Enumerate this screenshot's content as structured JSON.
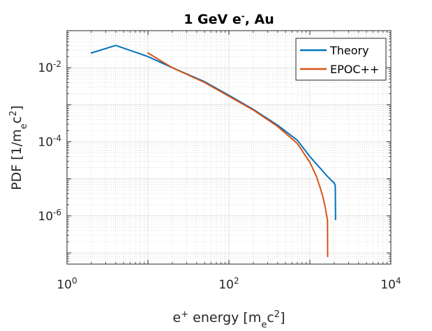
{
  "chart_data": {
    "type": "line",
    "title": {
      "main": "1 GeV e",
      "sup": "-",
      "tail": ", Au"
    },
    "xlabel": {
      "a": "e",
      "a_sup": "+",
      "b": " energy [m",
      "b_sub": "e",
      "c": "c",
      "c_sup": "2",
      "d": "]"
    },
    "ylabel": {
      "a": "PDF [1/m",
      "a_sub": "e",
      "b": "c",
      "b_sup": "2",
      "c": "]"
    },
    "xscale": "log",
    "yscale": "log",
    "xlim": [
      1,
      10000
    ],
    "ylim": [
      5e-08,
      0.1
    ],
    "xticks": [
      {
        "value": 1,
        "base": "10",
        "exp": "0"
      },
      {
        "value": 100,
        "base": "10",
        "exp": "2"
      },
      {
        "value": 10000,
        "base": "10",
        "exp": "4"
      }
    ],
    "yticks": [
      {
        "value": 1e-06,
        "base": "10",
        "exp": "-6"
      },
      {
        "value": 0.0001,
        "base": "10",
        "exp": "-4"
      },
      {
        "value": 0.01,
        "base": "10",
        "exp": "-2"
      }
    ],
    "grid": true,
    "legend_position": "top-right",
    "series": [
      {
        "name": "Theory",
        "color": "#0072BD",
        "x": [
          2,
          4,
          10,
          20,
          50,
          100,
          200,
          400,
          700,
          1000,
          1300,
          1600,
          1900,
          2000,
          2060,
          2070,
          2075
        ],
        "y": [
          0.025,
          0.04,
          0.02,
          0.01,
          0.0042,
          0.0018,
          0.00075,
          0.00028,
          0.00011,
          4e-05,
          2.1e-05,
          1.25e-05,
          8.5e-06,
          7.8e-06,
          6.6e-06,
          2e-06,
          8e-07
        ]
      },
      {
        "name": "EPOC++",
        "color": "#D95319",
        "x": [
          10,
          20,
          50,
          100,
          200,
          400,
          700,
          1000,
          1200,
          1350,
          1450,
          1550,
          1600,
          1650,
          1655,
          1658
        ],
        "y": [
          0.025,
          0.01,
          0.004,
          0.0017,
          0.00072,
          0.00026,
          9e-05,
          2.8e-05,
          1.2e-05,
          5.5e-06,
          3.2e-06,
          1.7e-06,
          1.1e-06,
          8e-07,
          2.8e-07,
          8e-08
        ]
      }
    ]
  }
}
